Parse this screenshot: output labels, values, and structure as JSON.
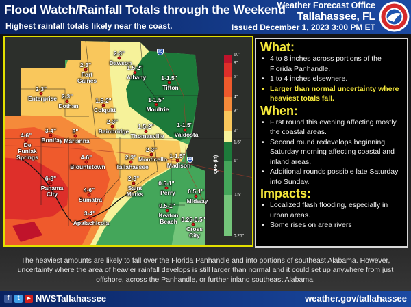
{
  "header": {
    "title": "Flood Watch/Rainfall Totals through the Weekend",
    "subtitle": "Highest rainfall totals likely near the coast.",
    "office_line1": "Weather Forecast Office",
    "office_line2": "Tallahassee, FL",
    "issued": "Issued December 1, 2023 3:00 PM ET",
    "logo_text": "NATIONAL WEATHER SERVICE"
  },
  "map": {
    "legend": {
      "title": "QPF (in)",
      "ticks": [
        "10\"",
        "8\"",
        "6\"",
        "4\"",
        "3\"",
        "2\"",
        "1.5\"",
        "1\"",
        "0.5\"",
        "0.25\""
      ],
      "colors": [
        "#c0132b",
        "#de2f2a",
        "#ef5a2c",
        "#f58a3a",
        "#f9c75c",
        "#f6f29a",
        "#1d7a3a",
        "#44a65a",
        "#74c57a"
      ]
    },
    "interstates": [
      "75",
      "10"
    ],
    "cities": [
      {
        "value": "2-3\"",
        "name": [
          "Dawson"
        ]
      },
      {
        "value": "1.5-2\"",
        "name": [
          "Albany"
        ]
      },
      {
        "value": "2-3\"",
        "name": [
          "Fort",
          "Gaines"
        ]
      },
      {
        "value": "2-3\"",
        "name": [
          "Enterprise"
        ]
      },
      {
        "value": "2-3\"",
        "name": [
          "Dothan"
        ]
      },
      {
        "value": "1.5-2\"",
        "name": [
          "Colquitt"
        ]
      },
      {
        "value": "1-1.5\"",
        "name": [
          "Tifton"
        ]
      },
      {
        "value": "1-1.5\"",
        "name": [
          "Moultrie"
        ]
      },
      {
        "value": "2-3\"",
        "name": [
          "Bainbridge"
        ]
      },
      {
        "value": "1.5-2\"",
        "name": [
          "Thomasville"
        ]
      },
      {
        "value": "1-1.5\"",
        "name": [
          "Valdosta"
        ]
      },
      {
        "value": "3-4\"",
        "name": [
          "Bonifay"
        ]
      },
      {
        "value": "3\"",
        "name": [
          "Marianna"
        ]
      },
      {
        "value": "4-6\"",
        "name": [
          "De",
          "Funiak",
          "Springs"
        ]
      },
      {
        "value": "4-6\"",
        "name": [
          "Blountstown"
        ]
      },
      {
        "value": "2-3\"",
        "name": [
          "Tallahassee"
        ]
      },
      {
        "value": "2-3\"",
        "name": [
          "Monticello"
        ]
      },
      {
        "value": "1-1.5\"",
        "name": [
          "Madison"
        ]
      },
      {
        "value": "6-8\"",
        "name": [
          "Panama",
          "City"
        ]
      },
      {
        "value": "4-6\"",
        "name": [
          "Sumatra"
        ]
      },
      {
        "value": "2-3\"",
        "name": [
          "Saint",
          "Marks"
        ]
      },
      {
        "value": "0.5-1\"",
        "name": [
          "Perry"
        ]
      },
      {
        "value": "0.5-1\"",
        "name": [
          "Midway"
        ]
      },
      {
        "value": "0.5-1\"",
        "name": [
          "Keaton",
          "Beach"
        ]
      },
      {
        "value": "0.25-0.5\"",
        "name": [
          "Cross",
          "City"
        ]
      },
      {
        "value": "3-4\"",
        "name": [
          "Apalachicola"
        ]
      }
    ]
  },
  "panel": {
    "what": {
      "heading": "What:",
      "items": [
        "4 to 8 inches across portions of the Florida Panhandle.",
        "1 to 4 inches elsewhere.",
        "Larger than normal uncertainty where heaviest totals fall."
      ]
    },
    "when": {
      "heading": "When:",
      "items": [
        "First round this evening affecting mostly the coastal areas.",
        "Second round redevelops beginning Saturday morning affecting coastal and inland areas.",
        "Additional rounds possible late Saturday into Sunday."
      ]
    },
    "impacts": {
      "heading": "Impacts:",
      "items": [
        "Localized flash flooding, especially in urban areas.",
        "Some rises on area rivers"
      ]
    }
  },
  "footer": {
    "text": "The heaviest amounts are likely to fall over the Florida Panhandle and into portions of southeast Alabama. However, uncertainty where the area of heavier rainfall develops is still larger than normal and it could set up anywhere from just offshore, across the Panhandle, or further inland southeast Alabama.",
    "social_handle": "NWSTallahassee",
    "website": "weather.gov/tallahassee",
    "social_icons": [
      "facebook-icon",
      "twitter-icon",
      "youtube-icon"
    ]
  }
}
